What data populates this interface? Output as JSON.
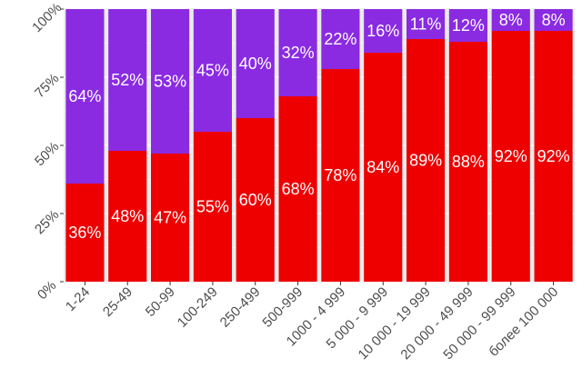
{
  "chart_data": {
    "type": "bar",
    "stacked": true,
    "percent": true,
    "categories": [
      "1-24",
      "25-49",
      "50-99",
      "100-249",
      "250-499",
      "500-999",
      "1000 - 4 999",
      "5 000 - 9 999",
      "10 000 - 19 999",
      "20 000 - 49 999",
      "50 000 - 99 999",
      "более 100 000"
    ],
    "series": [
      {
        "color": "#ee0000",
        "values": [
          36,
          48,
          47,
          55,
          60,
          68,
          78,
          84,
          89,
          88,
          92,
          92
        ],
        "labels": [
          "36%",
          "48%",
          "47%",
          "55%",
          "60%",
          "68%",
          "78%",
          "84%",
          "89%",
          "88%",
          "92%",
          "92%"
        ]
      },
      {
        "color": "#8a2be2",
        "values": [
          64,
          52,
          53,
          45,
          40,
          32,
          22,
          16,
          11,
          12,
          8,
          8
        ],
        "labels": [
          "64%",
          "52%",
          "53%",
          "45%",
          "40%",
          "32%",
          "22%",
          "16%",
          "11%",
          "12%",
          "8%",
          "8%"
        ]
      }
    ],
    "y_ticks": [
      0,
      25,
      50,
      75,
      100
    ],
    "y_tick_labels": [
      "0%",
      "25%",
      "50%",
      "75%",
      "100%"
    ],
    "ylim": [
      0,
      100
    ],
    "title": "",
    "xlabel": "",
    "ylabel": "",
    "grid": true,
    "background_color": "#ebebeb",
    "gridline_color": "#ffffff"
  }
}
